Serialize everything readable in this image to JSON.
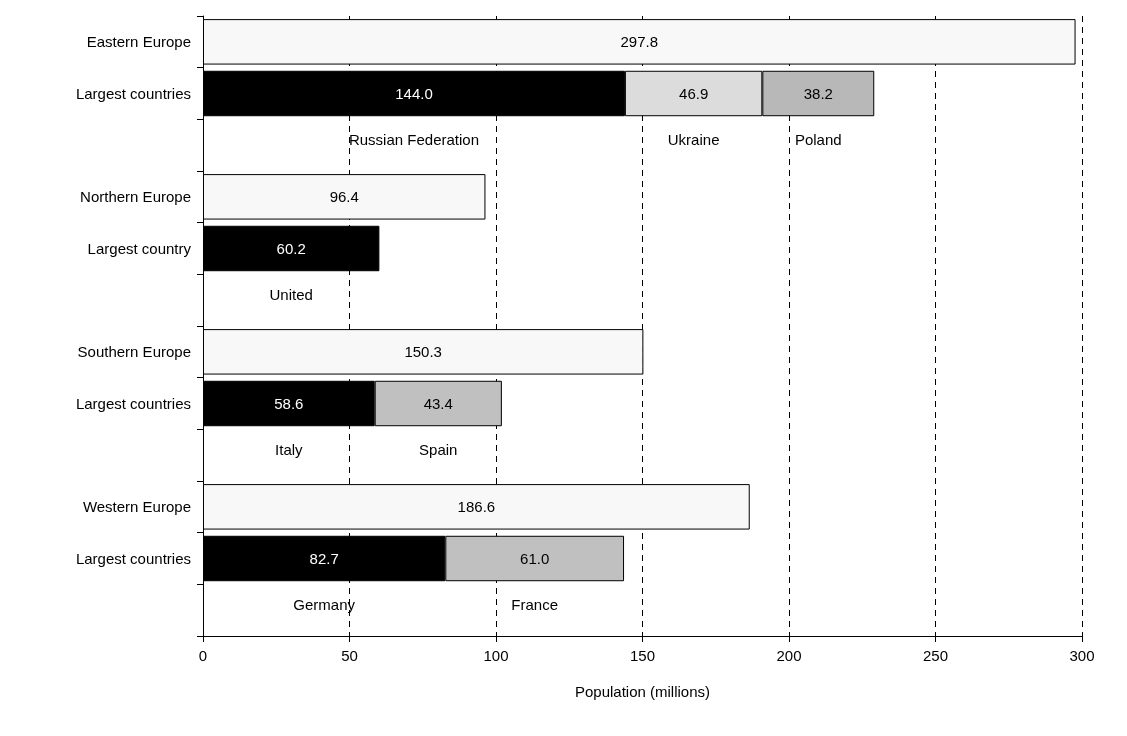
{
  "chart_data": {
    "type": "bar",
    "orientation": "horizontal",
    "stacked": true,
    "xlabel": "Population (millions)",
    "categories": [
      "Eastern Europe",
      "Largest countries",
      null,
      "Northern Europe",
      "Largest country",
      null,
      "Southern Europe",
      "Largest countries",
      null,
      "Western Europe",
      "Largest countries",
      null
    ],
    "series": [
      {
        "color": "#f8f8f8",
        "values": [
          297.8,
          null,
          null,
          96.4,
          null,
          null,
          150.3,
          null,
          null,
          186.6,
          null,
          null
        ],
        "value_labels": [
          "297.8",
          null,
          null,
          "96.4",
          null,
          null,
          "150.3",
          null,
          null,
          "186.6",
          null,
          null
        ]
      },
      {
        "color": "#000000",
        "values": [
          null,
          144.0,
          null,
          null,
          60.2,
          null,
          null,
          58.6,
          null,
          null,
          82.7,
          null
        ],
        "value_labels": [
          null,
          "144.0",
          null,
          null,
          "60.2",
          null,
          null,
          "58.6",
          null,
          null,
          "82.7",
          null
        ]
      },
      {
        "color": "#c0c0c0",
        "colors": [
          null,
          "#dcdcdc",
          null,
          null,
          null,
          null,
          null,
          "#c0c0c0",
          null,
          null,
          "#c0c0c0",
          null
        ],
        "values": [
          null,
          46.9,
          null,
          null,
          null,
          null,
          null,
          43.4,
          null,
          null,
          61.0,
          null
        ],
        "value_labels": [
          null,
          "46.9",
          null,
          null,
          null,
          null,
          null,
          "43.4",
          null,
          null,
          "61.0",
          null
        ]
      },
      {
        "color": "#b8b8b8",
        "values": [
          null,
          38.2,
          null,
          null,
          null,
          null,
          null,
          null,
          null,
          null,
          null,
          null
        ],
        "value_labels": [
          null,
          "38.2",
          null,
          null,
          null,
          null,
          null,
          null,
          null,
          null,
          null,
          null
        ]
      }
    ],
    "xlim": [
      0,
      300
    ],
    "xticks": [
      0,
      50,
      100,
      150,
      200,
      250,
      300
    ],
    "grid": "x",
    "annotations": [
      "Russian Federation",
      "Ukraine",
      "Poland",
      "United",
      "Italy",
      "Spain",
      "Germany",
      "France"
    ]
  }
}
